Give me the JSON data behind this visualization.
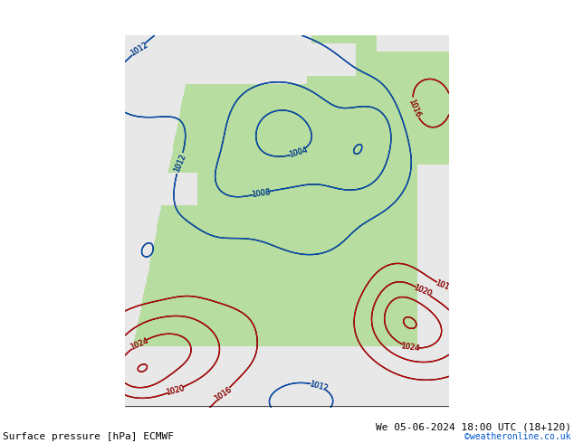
{
  "title_left": "Surface pressure [hPa] ECMWF",
  "title_right": "We 05-06-2024 18:00 UTC (18+120)",
  "credit": "©weatheronline.co.uk",
  "fig_width": 6.34,
  "fig_height": 4.9,
  "dpi": 100,
  "bg_color": "#ffffff",
  "map_land_color": "#b8dda0",
  "map_ocean_color": "#e8e8e8",
  "map_mideast_color": "#b8dda0",
  "contour_black_color": "#000000",
  "contour_blue_color": "#0055cc",
  "contour_red_color": "#cc0000",
  "label_fontsize": 6,
  "footer_fontsize": 8,
  "credit_fontsize": 7,
  "credit_color": "#0055cc"
}
